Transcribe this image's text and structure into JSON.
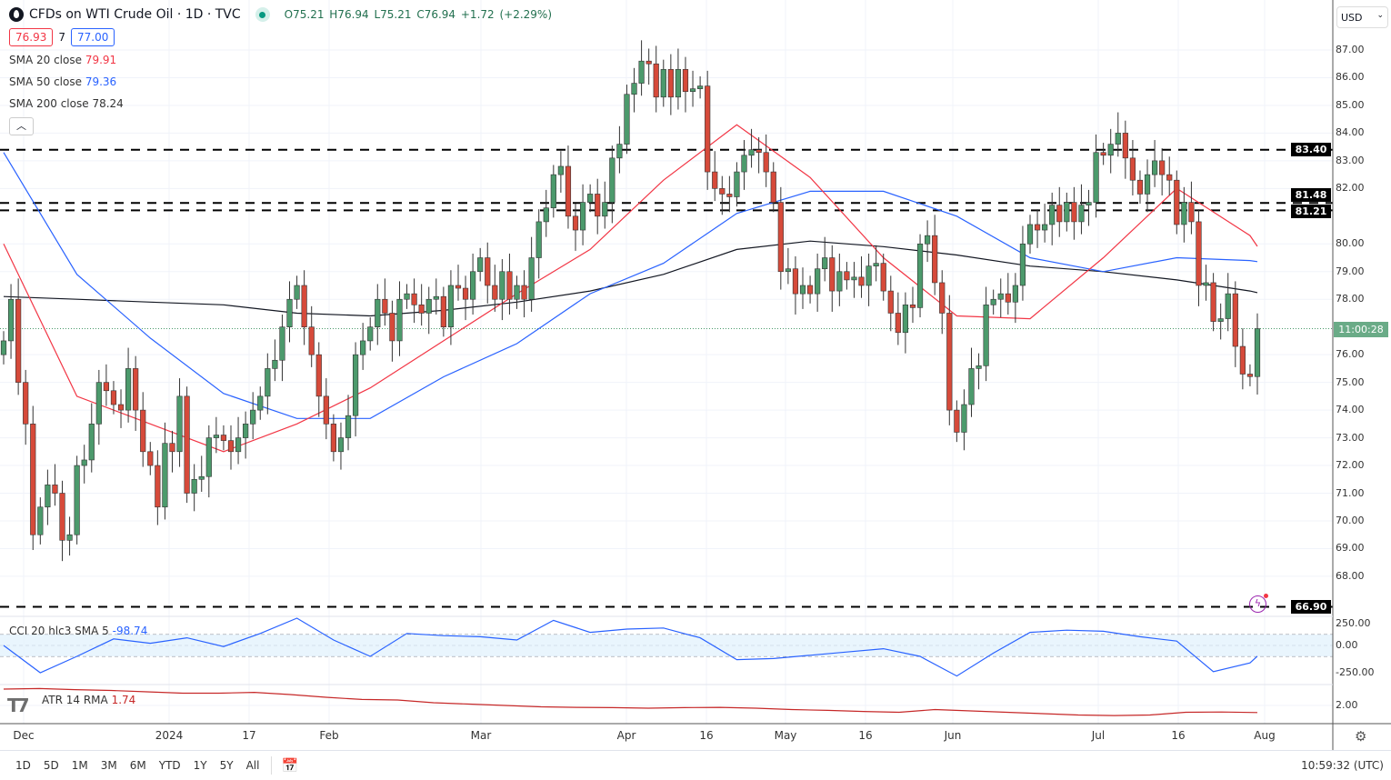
{
  "header": {
    "title": "CFDs on WTI Crude Oil · 1D · TVC",
    "ohlc": "O75.21 H76.94 L75.21 C76.94 +1.72 (+2.29%)",
    "bid": "76.93",
    "spread": "7",
    "ask": "77.00"
  },
  "indicators": [
    {
      "label": "SMA 20 close",
      "value": "79.91",
      "color": "#f23645"
    },
    {
      "label": "SMA 50 close",
      "value": "79.36",
      "color": "#2962ff"
    },
    {
      "label": "SMA 200 close",
      "value": "78.24",
      "color": "#131722"
    }
  ],
  "collapse_icon": "chevron-up-icon",
  "currency": "USD",
  "price_axis": [
    "87.00",
    "86.00",
    "85.00",
    "84.00",
    "83.00",
    "82.00",
    "80.00",
    "79.00",
    "78.00",
    "76.00",
    "75.00",
    "74.00",
    "73.00",
    "72.00",
    "71.00",
    "70.00",
    "69.00",
    "68.00"
  ],
  "horizontal_levels": [
    "83.40",
    "81.48",
    "81.21",
    "66.90"
  ],
  "countdown": "11:00:28",
  "last_price": 76.94,
  "colors": {
    "up": "#4c9a6c",
    "down": "#d64a3a",
    "sma20": "#f23645",
    "sma50": "#2962ff",
    "sma200": "#131722",
    "cci": "#2962ff",
    "atr": "#c62828"
  },
  "cci": {
    "label": "CCI 20 hlc3 SMA 5",
    "value": "-98.74",
    "axis": [
      "250.00",
      "0.00",
      "-250.00"
    ]
  },
  "atr": {
    "label": "ATR 14 RMA",
    "value": "1.74",
    "axis": [
      "2.00"
    ]
  },
  "time_axis": [
    "Dec",
    "2024",
    "17",
    "Feb",
    "Mar",
    "Apr",
    "16",
    "May",
    "16",
    "Jun",
    "Jul",
    "16",
    "Aug"
  ],
  "ranges": [
    "1D",
    "5D",
    "1M",
    "3M",
    "6M",
    "YTD",
    "1Y",
    "5Y",
    "All"
  ],
  "clock": "10:59:32 (UTC)",
  "chart_data": {
    "type": "candlestick",
    "closes": [
      76.5,
      78,
      75,
      73.5,
      69.5,
      70.5,
      71.3,
      71,
      69.3,
      69.5,
      72,
      72.2,
      73.5,
      75,
      74.7,
      74.2,
      74,
      75.5,
      74,
      72.5,
      72,
      70.5,
      72.8,
      72.5,
      74.5,
      71,
      71.5,
      71.6,
      73,
      73.1,
      72.9,
      72.5,
      73,
      73.5,
      74,
      74.5,
      75.5,
      75.8,
      77,
      78,
      78.5,
      77,
      76,
      74.5,
      73.5,
      72.5,
      73,
      73.8,
      76,
      76.5,
      77,
      78,
      77.5,
      76.5,
      78,
      78.2,
      77.8,
      77.5,
      78,
      78.1,
      77,
      78.5,
      78.4,
      78,
      79,
      79.5,
      78.5,
      78,
      79,
      78,
      78.5,
      78,
      79.5,
      80.8,
      81.3,
      82.5,
      82.8,
      81,
      80.5,
      81.5,
      81.8,
      81,
      81.5,
      83.1,
      83.6,
      85.4,
      85.8,
      86.6,
      86.5,
      85.3,
      86.3,
      85.3,
      86.3,
      85.5,
      85.6,
      85.7,
      82.6,
      82,
      81.8,
      81.7,
      82.6,
      83.2,
      83.4,
      83.3,
      82.6,
      81.5,
      79,
      79.1,
      78.2,
      78.5,
      78.2,
      79.1,
      79.5,
      78.3,
      79,
      78.7,
      78.8,
      78.5,
      79.2,
      79.3,
      78.3,
      77.5,
      76.8,
      77.8,
      77.7,
      80,
      80.3,
      78.6,
      77.5,
      74,
      73.2,
      74.2,
      75.5,
      75.6,
      77.8,
      78,
      78.2,
      77.9,
      78.5,
      80,
      80.7,
      80.5,
      80.7,
      81.4,
      80.8,
      81.5,
      80.8,
      81.4,
      81.5,
      83.3,
      83.2,
      83.6,
      84,
      83.1,
      82.3,
      81.8,
      82.5,
      83,
      82.5,
      82.3,
      80.7,
      81.5,
      80.8,
      78.5,
      78.6,
      77.2,
      77.3,
      78.2,
      76.3,
      75.3,
      75.21,
      76.94
    ],
    "sma_sample_every_bars": 10,
    "sma20": [
      80,
      74.5,
      73.5,
      72.5,
      73.5,
      74.8,
      76.5,
      78.2,
      79.8,
      82.3,
      84.3,
      82.4,
      79.5,
      77.4,
      77.3,
      79.5,
      82,
      80.3,
      79.91
    ],
    "sma50": [
      83.3,
      78.9,
      76.6,
      74.6,
      73.7,
      73.7,
      75.2,
      76.4,
      78.2,
      79.3,
      81.1,
      81.9,
      81.9,
      81,
      79.5,
      79,
      79.5,
      79.4,
      79.36
    ],
    "sma200": [
      78.1,
      78,
      77.9,
      77.8,
      77.5,
      77.4,
      77.6,
      77.9,
      78.3,
      78.9,
      79.8,
      80.1,
      79.9,
      79.6,
      79.2,
      79,
      78.7,
      78.3,
      78.24
    ],
    "cci_sample_every_bars": 5,
    "cci": [
      0,
      -250,
      -100,
      60,
      20,
      70,
      -10,
      110,
      250,
      50,
      -100,
      110,
      90,
      80,
      50,
      230,
      120,
      150,
      160,
      70,
      -130,
      -120,
      -90,
      -60,
      -30,
      -100,
      -280,
      -70,
      120,
      140,
      130,
      80,
      40,
      -240,
      -160,
      -98.74
    ],
    "atr": [
      2.6,
      2.62,
      2.58,
      2.55,
      2.5,
      2.45,
      2.45,
      2.48,
      2.4,
      2.3,
      2.22,
      2.2,
      2.1,
      2.05,
      2.0,
      1.95,
      1.93,
      1.92,
      1.9,
      1.92,
      1.93,
      1.9,
      1.85,
      1.82,
      1.78,
      1.75,
      1.85,
      1.8,
      1.75,
      1.7,
      1.65,
      1.63,
      1.65,
      1.75,
      1.76,
      1.74
    ],
    "ylim": [
      66.5,
      88
    ]
  }
}
